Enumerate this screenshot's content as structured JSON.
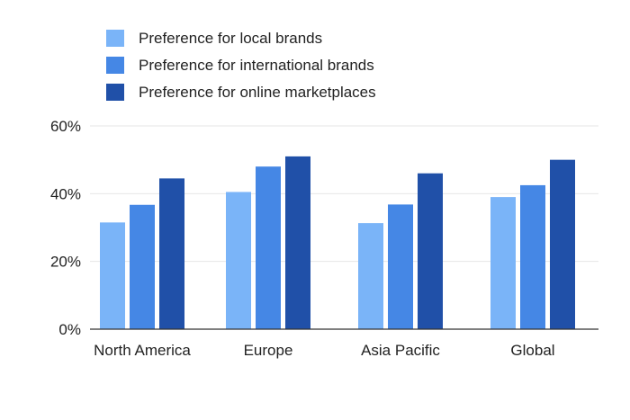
{
  "chart_data": {
    "type": "bar",
    "categories": [
      "North America",
      "Europe",
      "Asia Pacific",
      "Global"
    ],
    "series": [
      {
        "name": "Preference for local brands",
        "color": "#7ab4f8",
        "values": [
          31.5,
          40.5,
          31.3,
          39
        ]
      },
      {
        "name": "Preference for international brands",
        "color": "#4587e5",
        "values": [
          36.7,
          48,
          36.8,
          42.5
        ]
      },
      {
        "name": "Preference for online marketplaces",
        "color": "#2050a8",
        "values": [
          44.5,
          51,
          46,
          50
        ]
      }
    ],
    "y_ticks": [
      "0%",
      "20%",
      "40%",
      "60%"
    ],
    "y_tick_values": [
      0,
      20,
      40,
      60
    ],
    "ylim": [
      0,
      60
    ],
    "grid": true,
    "legend_position": "top-left"
  }
}
